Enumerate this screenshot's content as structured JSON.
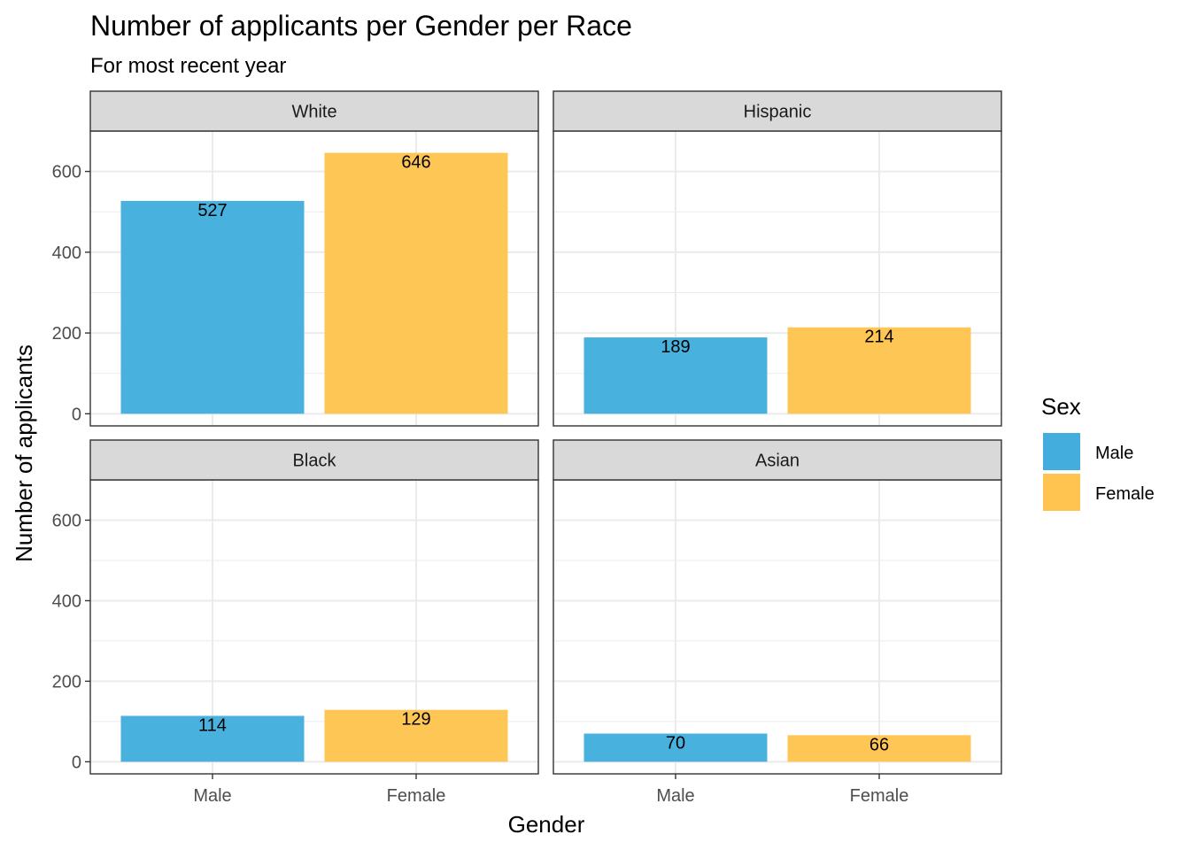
{
  "title": "Number of applicants per Gender per Race",
  "subtitle": "For most recent year",
  "colors": {
    "Male": "#43AEDD",
    "Female": "#FEC44F",
    "panel_border": "#333333",
    "strip_fill": "#D9D9D9",
    "grid": "#EBEBEB"
  },
  "chart_data": {
    "type": "bar",
    "facet_by": "Race",
    "xlabel": "Gender",
    "ylabel": "Number of applicants",
    "categories": [
      "Male",
      "Female"
    ],
    "ylim": [
      0,
      700
    ],
    "yticks": [
      0,
      200,
      400,
      600
    ],
    "grid": true,
    "legend": {
      "title": "Sex",
      "position": "right",
      "entries": [
        "Male",
        "Female"
      ]
    },
    "panels": [
      {
        "name": "White",
        "values": [
          527,
          646
        ]
      },
      {
        "name": "Hispanic",
        "values": [
          189,
          214
        ]
      },
      {
        "name": "Black",
        "values": [
          114,
          129
        ]
      },
      {
        "name": "Asian",
        "values": [
          70,
          66
        ]
      }
    ]
  }
}
